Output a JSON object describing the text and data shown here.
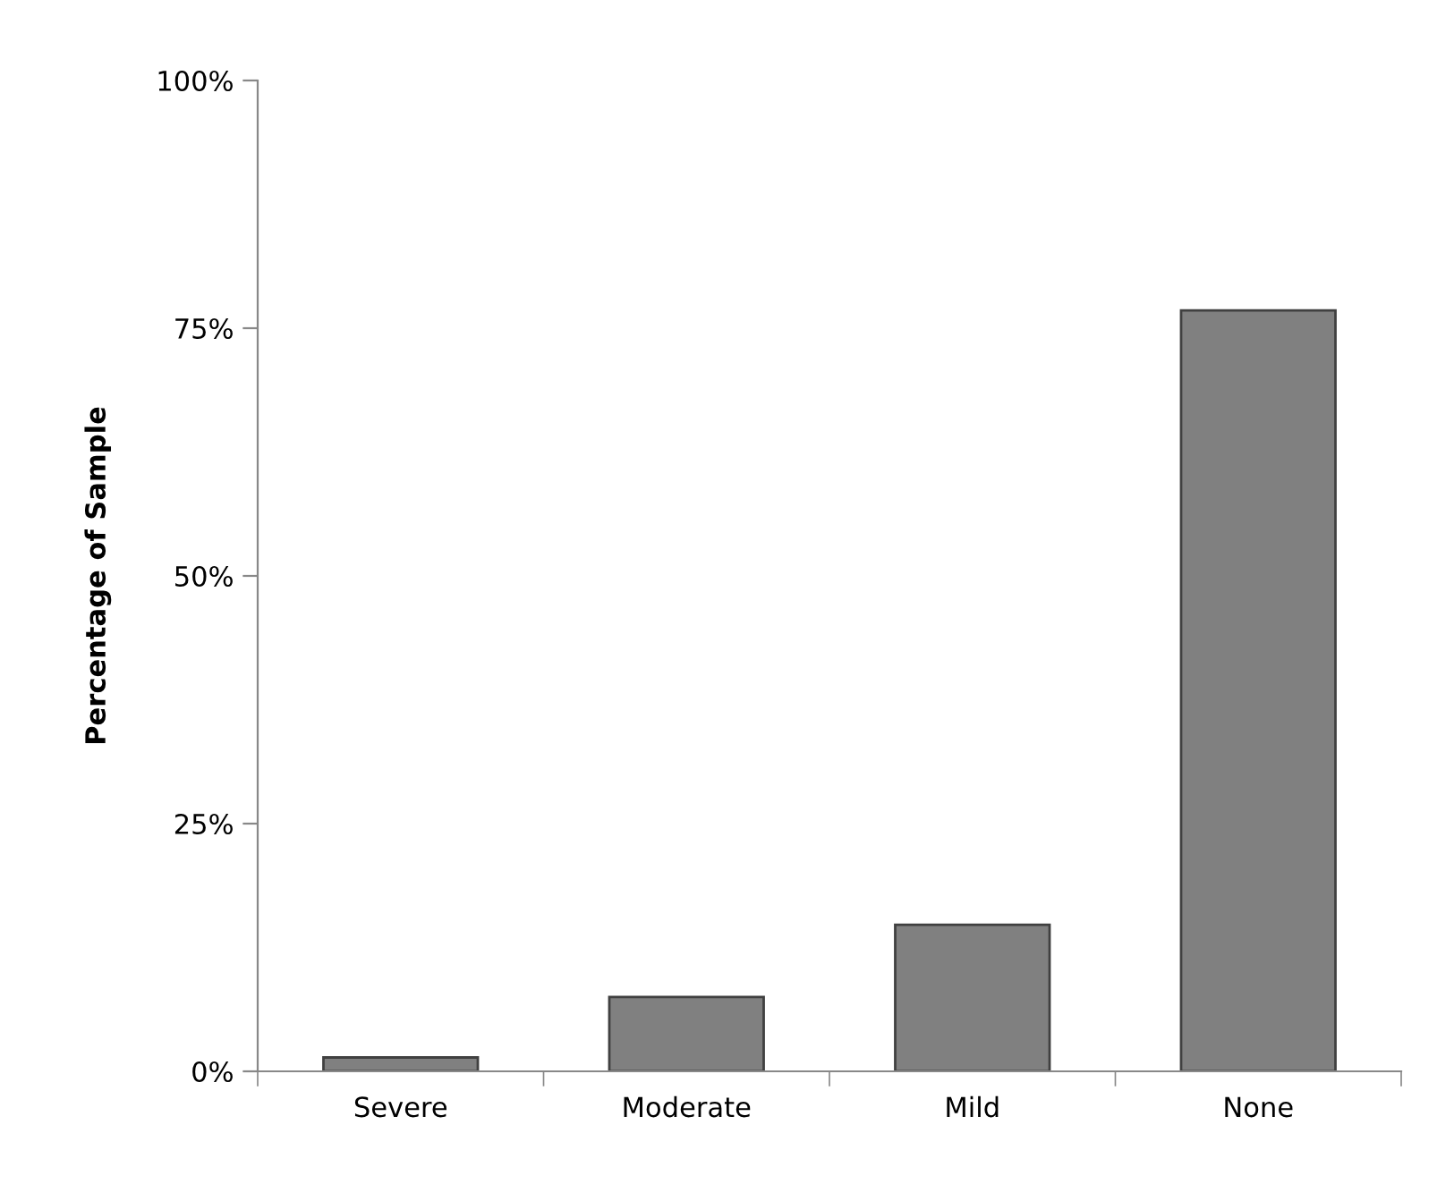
{
  "chart_data": {
    "type": "bar",
    "ylabel": "Percentage of Sample",
    "categories": [
      "Severe",
      "Moderate",
      "Mild",
      "None"
    ],
    "values": [
      1.4,
      7.5,
      14.8,
      76.8
    ],
    "color": "#808080",
    "ylim": [
      0,
      100
    ],
    "yticks": [
      {
        "value": 0,
        "label": "0%"
      },
      {
        "value": 25,
        "label": "25%"
      },
      {
        "value": 50,
        "label": "50%"
      },
      {
        "value": 75,
        "label": "75%"
      },
      {
        "value": 100,
        "label": "100%"
      }
    ],
    "grid": false,
    "legend": false
  }
}
